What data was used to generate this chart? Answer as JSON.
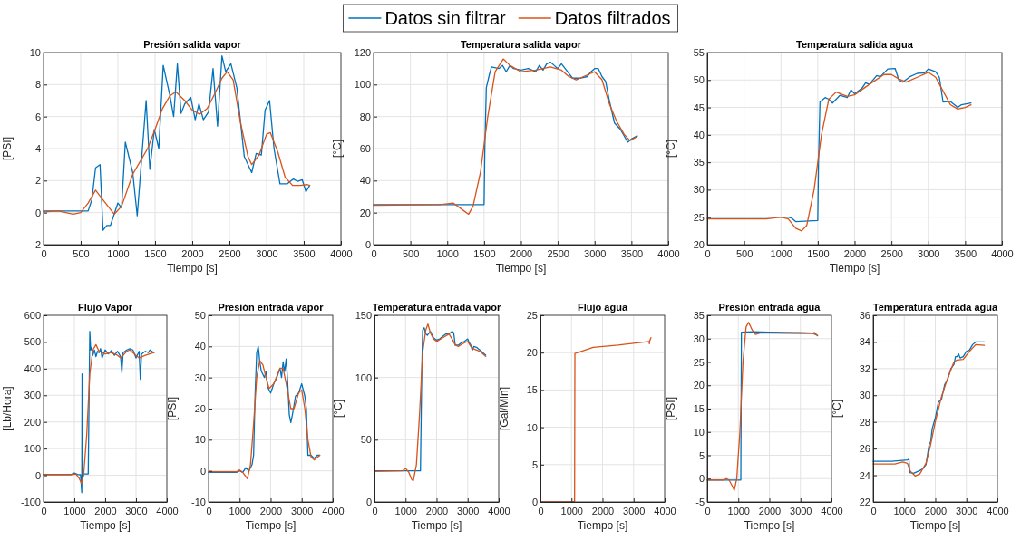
{
  "chart_data": [
    {
      "type": "line",
      "title": "Presión salida vapor",
      "xlabel": "Tiempo [s]",
      "ylabel": "[PSI]",
      "xlim": [
        0,
        4000
      ],
      "xticks": [
        0,
        500,
        1000,
        1500,
        2000,
        2500,
        3000,
        3500,
        4000
      ],
      "ylim": [
        -2,
        10
      ],
      "yticks": [
        -2,
        0,
        2,
        4,
        6,
        8,
        10
      ],
      "grid": true,
      "legend": "top",
      "series": [
        {
          "name": "Datos sin filtrar",
          "color": "#0072bd",
          "x": [
            0,
            600,
            650,
            700,
            760,
            800,
            850,
            900,
            1000,
            1050,
            1100,
            1200,
            1260,
            1330,
            1380,
            1430,
            1490,
            1550,
            1610,
            1700,
            1750,
            1800,
            1850,
            1900,
            1980,
            2040,
            2090,
            2150,
            2220,
            2280,
            2340,
            2400,
            2450,
            2520,
            2600,
            2700,
            2800,
            2860,
            2930,
            2980,
            3040,
            3100,
            3180,
            3280,
            3360,
            3420,
            3480,
            3530,
            3580
          ],
          "values": [
            0.1,
            0.1,
            0.8,
            2.8,
            3.0,
            -1.1,
            -0.8,
            -0.8,
            0.6,
            0.3,
            4.4,
            2.5,
            -0.2,
            4,
            7,
            2.7,
            5.2,
            4,
            9.2,
            7.3,
            6,
            9.3,
            6.2,
            6.8,
            7.2,
            5.8,
            6.8,
            5.8,
            6.3,
            9,
            5.4,
            9.8,
            8.8,
            9.3,
            7.8,
            3.5,
            2.5,
            3.7,
            3.6,
            6.4,
            7.0,
            4,
            1.8,
            1.8,
            2.1,
            1.95,
            2.05,
            1.3,
            1.7
          ]
        },
        {
          "name": "Datos filtrados",
          "color": "#d95319",
          "x": [
            0,
            200,
            400,
            500,
            600,
            700,
            800,
            950,
            1050,
            1200,
            1300,
            1400,
            1500,
            1600,
            1700,
            1780,
            1900,
            2000,
            2100,
            2200,
            2300,
            2400,
            2470,
            2550,
            2650,
            2750,
            2800,
            2900,
            3000,
            3050,
            3150,
            3250,
            3350,
            3450,
            3550,
            3580
          ],
          "values": [
            0.05,
            0.1,
            -0.1,
            0,
            0.6,
            1.4,
            0.8,
            -0.1,
            0.4,
            2.4,
            3.2,
            4,
            5.2,
            6.5,
            7.3,
            7.55,
            7,
            6.4,
            6.15,
            6.5,
            7.4,
            8.4,
            8.8,
            8.3,
            5.6,
            3.5,
            3.0,
            3.6,
            4.9,
            5.0,
            3.8,
            2.2,
            1.7,
            1.7,
            1.75,
            1.7
          ]
        }
      ]
    },
    {
      "type": "line",
      "title": "Temperatura salida vapor",
      "xlabel": "Tiempo [s]",
      "ylabel": "[°C]",
      "xlim": [
        0,
        4000
      ],
      "xticks": [
        0,
        500,
        1000,
        1500,
        2000,
        2500,
        3000,
        3500,
        4000
      ],
      "ylim": [
        0,
        120
      ],
      "yticks": [
        0,
        20,
        40,
        60,
        80,
        100,
        120
      ],
      "grid": true,
      "series": [
        {
          "color": "#0072bd",
          "x": [
            0,
            1000,
            1500,
            1510,
            1530,
            1570,
            1600,
            1700,
            1750,
            1800,
            1850,
            1900,
            2000,
            2100,
            2200,
            2250,
            2300,
            2350,
            2400,
            2450,
            2500,
            2550,
            2600,
            2700,
            2800,
            2900,
            2950,
            3000,
            3050,
            3100,
            3150,
            3200,
            3270,
            3350,
            3450,
            3500,
            3580
          ],
          "values": [
            25,
            25,
            25,
            60,
            98,
            106,
            111,
            110,
            112,
            108,
            112,
            110,
            109,
            110,
            108,
            112,
            109,
            113,
            114,
            112,
            110,
            113,
            110,
            104,
            104,
            105,
            108,
            110,
            110,
            105,
            102,
            90,
            76,
            72,
            64,
            66,
            68
          ]
        },
        {
          "color": "#d95319",
          "x": [
            0,
            900,
            1080,
            1200,
            1290,
            1350,
            1450,
            1550,
            1650,
            1760,
            1850,
            2000,
            2200,
            2400,
            2550,
            2650,
            2750,
            2850,
            3000,
            3100,
            3200,
            3300,
            3400,
            3480,
            3580
          ],
          "values": [
            24.5,
            25,
            26,
            22,
            19,
            24,
            45,
            80,
            108,
            116,
            112,
            108,
            109,
            111,
            109,
            105,
            103,
            105,
            108,
            103,
            88,
            77,
            69,
            65,
            67.5
          ]
        }
      ]
    },
    {
      "type": "line",
      "title": "Temperatura salida agua",
      "xlabel": "Tiempo [s]",
      "ylabel": "[°C]",
      "xlim": [
        0,
        4000
      ],
      "xticks": [
        0,
        500,
        1000,
        1500,
        2000,
        2500,
        3000,
        3500,
        4000
      ],
      "ylim": [
        20,
        55
      ],
      "yticks": [
        20,
        25,
        30,
        35,
        40,
        45,
        50,
        55
      ],
      "grid": true,
      "series": [
        {
          "color": "#0072bd",
          "x": [
            0,
            1100,
            1150,
            1200,
            1500,
            1510,
            1530,
            1600,
            1650,
            1700,
            1800,
            1900,
            1950,
            2000,
            2100,
            2150,
            2200,
            2300,
            2350,
            2450,
            2550,
            2600,
            2650,
            2750,
            2850,
            2950,
            3000,
            3100,
            3150,
            3200,
            3300,
            3400,
            3450,
            3580
          ],
          "values": [
            25,
            25,
            24.8,
            24.2,
            24.4,
            35,
            46,
            46.8,
            46.5,
            45.8,
            47.2,
            46.8,
            48.2,
            47.5,
            48.5,
            49.5,
            49.2,
            50.8,
            50.6,
            52,
            52.1,
            50,
            49.6,
            50.6,
            51.2,
            51.3,
            52,
            51.5,
            50.5,
            46,
            46.1,
            45,
            45.5,
            45.8
          ]
        },
        {
          "color": "#d95319",
          "x": [
            0,
            800,
            1000,
            1100,
            1200,
            1280,
            1350,
            1450,
            1550,
            1650,
            1750,
            1900,
            2000,
            2200,
            2400,
            2500,
            2600,
            2700,
            2850,
            3000,
            3100,
            3200,
            3300,
            3400,
            3500,
            3580
          ],
          "values": [
            24.7,
            24.7,
            25,
            24.7,
            23,
            22.5,
            23.5,
            30,
            40,
            46.5,
            47.8,
            47,
            47.3,
            49.2,
            51,
            51,
            50.2,
            49.6,
            50.5,
            51.4,
            50.5,
            48,
            45.5,
            44.7,
            45,
            45.5
          ]
        }
      ]
    },
    {
      "type": "line",
      "title": "Flujo Vapor",
      "xlabel": "Tiempo [s]",
      "ylabel": "[Lb/Hora]",
      "xlim": [
        0,
        4000
      ],
      "xticks": [
        0,
        1000,
        2000,
        3000,
        4000
      ],
      "ylim": [
        -100,
        600
      ],
      "yticks": [
        -100,
        0,
        100,
        200,
        300,
        400,
        500,
        600
      ],
      "grid": true,
      "series": [
        {
          "color": "#0072bd",
          "x": [
            0,
            900,
            1000,
            1100,
            1200,
            1240,
            1250,
            1265,
            1300,
            1450,
            1500,
            1530,
            1560,
            1600,
            1650,
            1700,
            1750,
            1800,
            1850,
            1900,
            2000,
            2100,
            2200,
            2300,
            2400,
            2500,
            2540,
            2580,
            2700,
            2800,
            2900,
            3000,
            3100,
            3140,
            3180,
            3300,
            3400,
            3450,
            3580
          ],
          "values": [
            3,
            3,
            8,
            3,
            2,
            -65,
            380,
            -10,
            5,
            5,
            540,
            470,
            480,
            450,
            470,
            445,
            465,
            460,
            475,
            440,
            470,
            455,
            468,
            450,
            465,
            445,
            385,
            460,
            470,
            475,
            470,
            440,
            465,
            360,
            455,
            465,
            460,
            470,
            460
          ]
        },
        {
          "color": "#d95319",
          "x": [
            0,
            900,
            1050,
            1150,
            1230,
            1300,
            1400,
            1500,
            1600,
            1700,
            1800,
            2000,
            2200,
            2400,
            2500,
            2700,
            2800,
            3000,
            3100,
            3300,
            3580
          ],
          "values": [
            2,
            2,
            5,
            -10,
            -30,
            0,
            150,
            380,
            470,
            490,
            465,
            455,
            460,
            450,
            440,
            465,
            470,
            450,
            440,
            450,
            460
          ]
        }
      ]
    },
    {
      "type": "line",
      "title": "Presión entrada vapor",
      "xlabel": "Tiempo [s]",
      "ylabel": "[PSI]",
      "xlim": [
        0,
        4000
      ],
      "xticks": [
        0,
        1000,
        2000,
        3000,
        4000
      ],
      "ylim": [
        -10,
        50
      ],
      "yticks": [
        -10,
        0,
        10,
        20,
        30,
        40,
        50
      ],
      "grid": true,
      "series": [
        {
          "color": "#0072bd",
          "x": [
            0,
            900,
            1000,
            1100,
            1200,
            1300,
            1400,
            1450,
            1500,
            1550,
            1600,
            1650,
            1700,
            1800,
            1850,
            1900,
            2000,
            2100,
            2200,
            2300,
            2350,
            2400,
            2450,
            2500,
            2550,
            2600,
            2650,
            2700,
            2800,
            2900,
            3000,
            3100,
            3150,
            3200,
            3300,
            3400,
            3500,
            3580
          ],
          "values": [
            -0.5,
            -0.5,
            0,
            -0.5,
            1,
            0,
            2,
            5,
            25,
            38,
            40,
            35,
            32,
            30,
            32,
            27,
            25,
            28,
            30,
            33,
            30,
            35,
            32,
            36,
            28,
            18,
            15.5,
            18,
            24,
            25,
            28,
            24,
            20,
            5,
            5,
            4,
            5,
            5
          ]
        },
        {
          "color": "#d95319",
          "x": [
            0,
            900,
            1000,
            1100,
            1250,
            1350,
            1450,
            1550,
            1650,
            1750,
            1850,
            1950,
            2100,
            2300,
            2400,
            2500,
            2650,
            2750,
            2900,
            3000,
            3100,
            3200,
            3300,
            3400,
            3580
          ],
          "values": [
            -0.3,
            -0.3,
            0.3,
            -0.5,
            -2.5,
            2,
            15,
            30,
            35.5,
            34,
            30,
            26.5,
            28,
            33,
            33,
            28,
            20,
            20,
            25,
            26,
            20,
            10,
            4.5,
            3.5,
            5
          ]
        }
      ]
    },
    {
      "type": "line",
      "title": "Temperatura entrada vapor",
      "xlabel": "Tiempo [s]",
      "ylabel": "[°C]",
      "xlim": [
        0,
        4000
      ],
      "xticks": [
        0,
        1000,
        2000,
        3000,
        4000
      ],
      "ylim": [
        0,
        150
      ],
      "yticks": [
        0,
        50,
        100,
        150
      ],
      "grid": true,
      "series": [
        {
          "color": "#0072bd",
          "x": [
            0,
            1400,
            1480,
            1520,
            1550,
            1600,
            1650,
            1700,
            1800,
            1900,
            2000,
            2100,
            2200,
            2300,
            2400,
            2500,
            2550,
            2600,
            2700,
            2800,
            2900,
            3000,
            3050,
            3100,
            3150,
            3200,
            3300,
            3400,
            3580
          ],
          "values": [
            25,
            25,
            25,
            100,
            138,
            140,
            135,
            134,
            137,
            132,
            130,
            131,
            133,
            135,
            135,
            137,
            136,
            126,
            126,
            128,
            129,
            131,
            128,
            126,
            122,
            125,
            124,
            122,
            118
          ]
        },
        {
          "color": "#d95319",
          "x": [
            0,
            900,
            1000,
            1100,
            1200,
            1250,
            1350,
            1450,
            1550,
            1650,
            1720,
            1800,
            1900,
            2000,
            2200,
            2400,
            2500,
            2600,
            2700,
            2900,
            3000,
            3100,
            3200,
            3400,
            3580
          ],
          "values": [
            24.5,
            25,
            27,
            24,
            18,
            17,
            30,
            70,
            120,
            138,
            143,
            136,
            131,
            129,
            132,
            135,
            131,
            126,
            125,
            128,
            129,
            125,
            123,
            121,
            117
          ]
        }
      ]
    },
    {
      "type": "line",
      "title": "Flujo agua",
      "xlabel": "Tiempo [s]",
      "ylabel": "[Gal/Min]",
      "xlim": [
        0,
        4000
      ],
      "xticks": [
        0,
        1000,
        2000,
        3000,
        4000
      ],
      "ylim": [
        0,
        25
      ],
      "yticks": [
        0,
        5,
        10,
        15,
        20,
        25
      ],
      "grid": true,
      "series": [
        {
          "color": "#d95319",
          "x": [
            0,
            1100,
            1110,
            1200,
            1700,
            2500,
            3500,
            3510,
            3520,
            3560
          ],
          "values": [
            0,
            0,
            19.9,
            20,
            20.7,
            21,
            21.5,
            21.2,
            21.6,
            22
          ]
        }
      ]
    },
    {
      "type": "line",
      "title": "Presión entrada agua",
      "xlabel": "Tiempo [s]",
      "ylabel": "[PSI]",
      "xlim": [
        0,
        4000
      ],
      "xticks": [
        0,
        1000,
        2000,
        3000,
        4000
      ],
      "ylim": [
        -5,
        35
      ],
      "yticks": [
        -5,
        0,
        5,
        10,
        15,
        20,
        25,
        30,
        35
      ],
      "grid": true,
      "series": [
        {
          "color": "#0072bd",
          "x": [
            0,
            1080,
            1100,
            1500,
            2000,
            3000,
            3400,
            3450,
            3550
          ],
          "values": [
            -0.3,
            -0.3,
            31.4,
            31.5,
            31.4,
            31.3,
            31.2,
            31.3,
            30.6
          ]
        },
        {
          "color": "#d95319",
          "x": [
            0,
            500,
            620,
            700,
            800,
            870,
            950,
            1050,
            1150,
            1250,
            1330,
            1450,
            1550,
            1700,
            2000,
            3000,
            3400,
            3550
          ],
          "values": [
            -0.3,
            -0.3,
            0,
            -0.3,
            -1.5,
            -2.5,
            0,
            10,
            25,
            32.5,
            33.5,
            31.8,
            30.9,
            31.2,
            31.2,
            31.1,
            31.1,
            30.7
          ]
        }
      ]
    },
    {
      "type": "line",
      "title": "Temperatura entrada agua",
      "xlabel": "Tiempo [s]",
      "ylabel": "[°C]",
      "xlim": [
        0,
        4000
      ],
      "xticks": [
        0,
        1000,
        2000,
        3000,
        4000
      ],
      "ylim": [
        22,
        36
      ],
      "yticks": [
        22,
        24,
        26,
        28,
        30,
        32,
        34,
        36
      ],
      "grid": true,
      "series": [
        {
          "color": "#0072bd",
          "x": [
            0,
            600,
            1100,
            1150,
            1180,
            1300,
            1500,
            1600,
            1700,
            1800,
            1850,
            1900,
            2000,
            2100,
            2200,
            2300,
            2400,
            2500,
            2600,
            2650,
            2700,
            2750,
            2800,
            2900,
            3000,
            3100,
            3200,
            3300,
            3580
          ],
          "values": [
            25.05,
            25.05,
            25.15,
            25.2,
            24.2,
            24.15,
            24.35,
            24.5,
            24.8,
            26.3,
            26.5,
            27.5,
            28.3,
            29.5,
            29.7,
            30.8,
            31.2,
            32,
            32.3,
            32.9,
            32.9,
            33.1,
            32.8,
            32.9,
            33.3,
            33.4,
            33.8,
            34.0,
            34.0
          ]
        },
        {
          "color": "#d95319",
          "x": [
            0,
            700,
            950,
            1100,
            1200,
            1350,
            1500,
            1700,
            1850,
            2000,
            2200,
            2400,
            2600,
            2700,
            2900,
            3100,
            3300,
            3580
          ],
          "values": [
            24.85,
            24.85,
            25,
            24.9,
            24.3,
            23.95,
            24.1,
            24.9,
            26.3,
            28,
            29.9,
            31.3,
            32.5,
            32.65,
            32.7,
            33.3,
            33.8,
            33.75
          ]
        }
      ]
    }
  ]
}
